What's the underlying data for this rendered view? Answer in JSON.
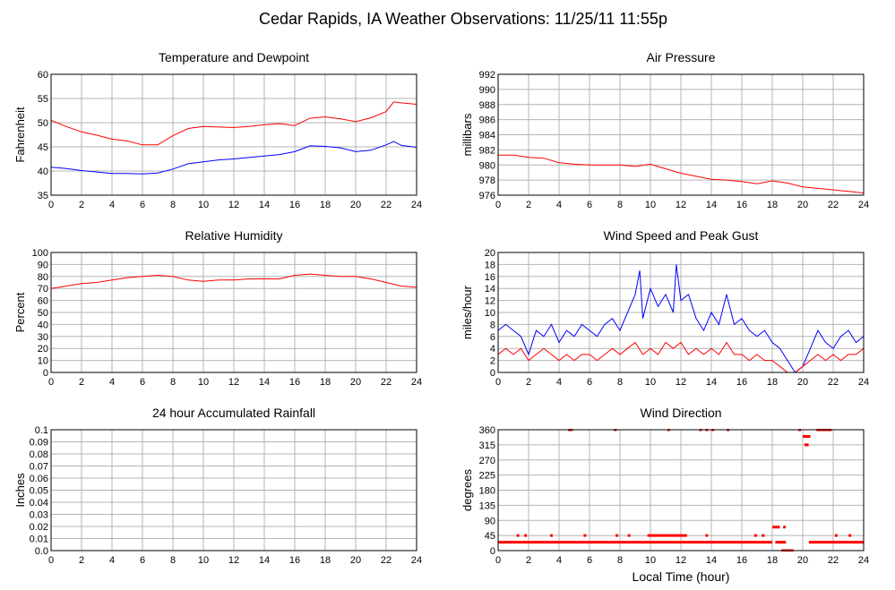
{
  "page": {
    "title": "Cedar Rapids, IA Weather Observations: 11/25/11 11:55p",
    "xaxis_label": "Local Time (hour)"
  },
  "colors": {
    "primary": "#ff0000",
    "secondary": "#0000ff",
    "grid": "#b4b4b4",
    "frame": "#000000"
  },
  "chart_data": [
    {
      "id": "temperature",
      "type": "line",
      "title": "Temperature and Dewpoint",
      "ylabel": "Fahrenheit",
      "xlim": [
        0,
        24
      ],
      "ylim": [
        35,
        60
      ],
      "yticks": [
        35,
        40,
        45,
        50,
        55,
        60
      ],
      "ytick_labels": [
        "35",
        "40",
        "45",
        "50",
        "55",
        "60"
      ],
      "xticks": [
        0,
        2,
        4,
        6,
        8,
        10,
        12,
        14,
        16,
        18,
        20,
        22,
        24
      ],
      "grid": true,
      "series": [
        {
          "color": "#ff0000",
          "x": [
            0,
            1,
            2,
            3,
            4,
            5,
            6,
            7,
            8,
            9,
            10,
            11,
            12,
            13,
            14,
            15,
            16,
            17,
            18,
            19,
            20,
            21,
            22,
            22.5,
            23,
            24
          ],
          "y": [
            50.5,
            49.2,
            48.1,
            47.4,
            46.6,
            46.2,
            45.4,
            45.4,
            47.3,
            48.8,
            49.2,
            49.1,
            49.0,
            49.2,
            49.6,
            49.8,
            49.4,
            50.9,
            51.2,
            50.8,
            50.2,
            51.0,
            52.3,
            54.3,
            54.1,
            53.8
          ]
        },
        {
          "color": "#0000ff",
          "x": [
            0,
            1,
            2,
            3,
            4,
            5,
            6,
            7,
            8,
            9,
            10,
            11,
            12,
            13,
            14,
            15,
            16,
            17,
            18,
            19,
            20,
            21,
            22,
            22.5,
            23,
            24
          ],
          "y": [
            40.8,
            40.5,
            40.1,
            39.8,
            39.5,
            39.5,
            39.4,
            39.6,
            40.4,
            41.5,
            41.9,
            42.3,
            42.5,
            42.8,
            43.1,
            43.4,
            44.0,
            45.2,
            45.1,
            44.8,
            44.0,
            44.3,
            45.4,
            46.1,
            45.3,
            44.9
          ]
        }
      ]
    },
    {
      "id": "pressure",
      "type": "line",
      "title": "Air Pressure",
      "ylabel": "millibars",
      "xlim": [
        0,
        24
      ],
      "ylim": [
        976,
        992
      ],
      "yticks": [
        976,
        978,
        980,
        982,
        984,
        986,
        988,
        990,
        992
      ],
      "ytick_labels": [
        "976",
        "978",
        "980",
        "982",
        "984",
        "986",
        "988",
        "990",
        "992"
      ],
      "xticks": [
        0,
        2,
        4,
        6,
        8,
        10,
        12,
        14,
        16,
        18,
        20,
        22,
        24
      ],
      "grid": true,
      "series": [
        {
          "color": "#ff0000",
          "x": [
            0,
            1,
            2,
            3,
            4,
            5,
            6,
            7,
            8,
            9,
            10,
            11,
            12,
            13,
            14,
            15,
            16,
            17,
            18,
            19,
            20,
            21,
            22,
            23,
            24
          ],
          "y": [
            981.3,
            981.3,
            981.0,
            980.9,
            980.3,
            980.1,
            980.0,
            980.0,
            980.0,
            979.8,
            980.1,
            979.5,
            978.9,
            978.5,
            978.1,
            978.0,
            977.8,
            977.5,
            977.9,
            977.6,
            977.1,
            976.9,
            976.7,
            976.5,
            976.3
          ]
        }
      ]
    },
    {
      "id": "humidity",
      "type": "line",
      "title": "Relative Humidity",
      "ylabel": "Percent",
      "xlim": [
        0,
        24
      ],
      "ylim": [
        0,
        100
      ],
      "yticks": [
        0,
        10,
        20,
        30,
        40,
        50,
        60,
        70,
        80,
        90,
        100
      ],
      "ytick_labels": [
        "0",
        "10",
        "20",
        "30",
        "40",
        "50",
        "60",
        "70",
        "80",
        "90",
        "100"
      ],
      "xticks": [
        0,
        2,
        4,
        6,
        8,
        10,
        12,
        14,
        16,
        18,
        20,
        22,
        24
      ],
      "grid": true,
      "series": [
        {
          "color": "#ff0000",
          "x": [
            0,
            1,
            2,
            3,
            4,
            5,
            6,
            7,
            8,
            9,
            10,
            11,
            12,
            13,
            14,
            15,
            16,
            17,
            18,
            19,
            20,
            21,
            22,
            23,
            24
          ],
          "y": [
            70,
            72,
            74,
            75,
            77,
            79,
            80,
            81,
            80,
            77,
            76,
            77,
            77,
            78,
            78,
            78,
            81,
            82,
            81,
            80,
            80,
            78,
            75,
            72,
            71
          ]
        }
      ]
    },
    {
      "id": "wind",
      "type": "line",
      "title": "Wind Speed and Peak Gust",
      "ylabel": "miles/hour",
      "xlim": [
        0,
        24
      ],
      "ylim": [
        0,
        20
      ],
      "yticks": [
        0,
        2,
        4,
        6,
        8,
        10,
        12,
        14,
        16,
        18,
        20
      ],
      "ytick_labels": [
        "0",
        "2",
        "4",
        "6",
        "8",
        "10",
        "12",
        "14",
        "16",
        "18",
        "20"
      ],
      "xticks": [
        0,
        2,
        4,
        6,
        8,
        10,
        12,
        14,
        16,
        18,
        20,
        22,
        24
      ],
      "grid": true,
      "series": [
        {
          "color": "#0000ff",
          "x": [
            0,
            0.5,
            1,
            1.5,
            2,
            2.5,
            3,
            3.5,
            4,
            4.5,
            5,
            5.5,
            6,
            6.5,
            7,
            7.5,
            8,
            8.5,
            9,
            9.3,
            9.5,
            10,
            10.5,
            11,
            11.5,
            11.7,
            12,
            12.5,
            13,
            13.5,
            14,
            14.5,
            15,
            15.5,
            16,
            16.5,
            17,
            17.5,
            18,
            18.5,
            19,
            19.5,
            20,
            20.5,
            21,
            21.5,
            22,
            22.5,
            23,
            23.5,
            24
          ],
          "y": [
            7,
            8,
            7,
            6,
            3,
            7,
            6,
            8,
            5,
            7,
            6,
            8,
            7,
            6,
            8,
            9,
            7,
            10,
            13,
            17,
            9,
            14,
            11,
            13,
            10,
            18,
            12,
            13,
            9,
            7,
            10,
            8,
            13,
            8,
            9,
            7,
            6,
            7,
            5,
            4,
            2,
            0,
            1,
            4,
            7,
            5,
            4,
            6,
            7,
            5,
            6
          ]
        },
        {
          "color": "#ff0000",
          "x": [
            0,
            0.5,
            1,
            1.5,
            2,
            2.5,
            3,
            3.5,
            4,
            4.5,
            5,
            5.5,
            6,
            6.5,
            7,
            7.5,
            8,
            8.5,
            9,
            9.5,
            10,
            10.5,
            11,
            11.5,
            12,
            12.5,
            13,
            13.5,
            14,
            14.5,
            15,
            15.5,
            16,
            16.5,
            17,
            17.5,
            18,
            18.5,
            19,
            19.5,
            20,
            20.5,
            21,
            21.5,
            22,
            22.5,
            23,
            23.5,
            24
          ],
          "y": [
            3,
            4,
            3,
            4,
            2,
            3,
            4,
            3,
            2,
            3,
            2,
            3,
            3,
            2,
            3,
            4,
            3,
            4,
            5,
            3,
            4,
            3,
            5,
            4,
            5,
            3,
            4,
            3,
            4,
            3,
            5,
            3,
            3,
            2,
            3,
            2,
            2,
            1,
            0,
            0,
            1,
            2,
            3,
            2,
            3,
            2,
            3,
            3,
            4
          ]
        }
      ]
    },
    {
      "id": "rainfall",
      "type": "line",
      "title": "24 hour Accumulated Rainfall",
      "ylabel": "Inches",
      "xlim": [
        0,
        24
      ],
      "ylim": [
        0,
        0.1
      ],
      "yticks": [
        0,
        0.01,
        0.02,
        0.03,
        0.04,
        0.05,
        0.06,
        0.07,
        0.08,
        0.09,
        0.1
      ],
      "ytick_labels": [
        "0.0",
        "0.01",
        "0.02",
        "0.03",
        "0.04",
        "0.05",
        "0.06",
        "0.07",
        "0.08",
        "0.09",
        "0.1"
      ],
      "xticks": [
        0,
        2,
        4,
        6,
        8,
        10,
        12,
        14,
        16,
        18,
        20,
        22,
        24
      ],
      "grid": true,
      "series": [
        {
          "color": "#ff0000",
          "x": [
            0,
            24
          ],
          "y": [
            0,
            0
          ]
        }
      ]
    },
    {
      "id": "direction",
      "type": "scatter",
      "title": "Wind Direction",
      "ylabel": "degrees",
      "xlim": [
        0,
        24
      ],
      "ylim": [
        0,
        360
      ],
      "yticks": [
        0,
        45,
        90,
        135,
        180,
        225,
        270,
        315,
        360
      ],
      "ytick_labels": [
        "0",
        "45",
        "90",
        "135",
        "180",
        "225",
        "270",
        "315",
        "360"
      ],
      "xticks": [
        0,
        2,
        4,
        6,
        8,
        10,
        12,
        14,
        16,
        18,
        20,
        22,
        24
      ],
      "grid": true,
      "segments": [
        {
          "x0": 0,
          "x1": 18.0,
          "y": 25
        },
        {
          "x0": 18.2,
          "x1": 18.9,
          "y": 25
        },
        {
          "x0": 20.4,
          "x1": 24,
          "y": 25
        },
        {
          "x0": 9.8,
          "x1": 12.4,
          "y": 45
        },
        {
          "x0": 4.6,
          "x1": 4.9,
          "y": 360
        },
        {
          "x0": 18.0,
          "x1": 18.5,
          "y": 70
        },
        {
          "x0": 18.6,
          "x1": 19.4,
          "y": 0
        },
        {
          "x0": 20.0,
          "x1": 20.5,
          "y": 340
        },
        {
          "x0": 20.9,
          "x1": 21.9,
          "y": 360
        }
      ],
      "points": [
        {
          "x": 1.3,
          "y": 45
        },
        {
          "x": 1.8,
          "y": 45
        },
        {
          "x": 3.5,
          "y": 45
        },
        {
          "x": 5.7,
          "y": 45
        },
        {
          "x": 7.8,
          "y": 45
        },
        {
          "x": 8.6,
          "y": 45
        },
        {
          "x": 13.7,
          "y": 45
        },
        {
          "x": 16.9,
          "y": 45
        },
        {
          "x": 17.4,
          "y": 45
        },
        {
          "x": 22.2,
          "y": 45
        },
        {
          "x": 23.1,
          "y": 45
        },
        {
          "x": 7.7,
          "y": 360
        },
        {
          "x": 11.2,
          "y": 360
        },
        {
          "x": 13.3,
          "y": 360
        },
        {
          "x": 13.7,
          "y": 360
        },
        {
          "x": 14.1,
          "y": 360
        },
        {
          "x": 15.1,
          "y": 360
        },
        {
          "x": 18.8,
          "y": 70
        },
        {
          "x": 20.2,
          "y": 315
        },
        {
          "x": 20.3,
          "y": 315
        },
        {
          "x": 19.8,
          "y": 360
        }
      ]
    }
  ]
}
